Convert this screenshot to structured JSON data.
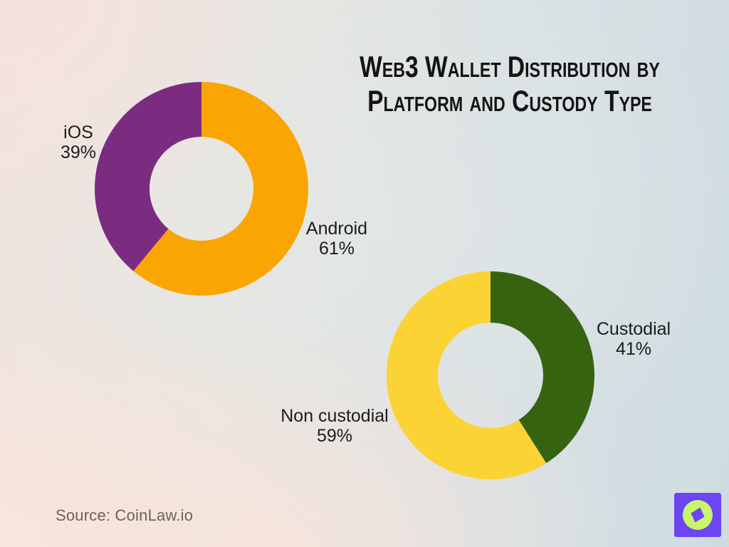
{
  "title": {
    "line1": "Web3 Wallet Distribution by",
    "line2": "Platform and Custody Type"
  },
  "source": {
    "text": "Source: CoinLaw.io"
  },
  "logo": {
    "background_color": "#6B46F2",
    "circle_color": "#C9F56B",
    "needle_color": "#6B46F2"
  },
  "colors": {
    "title_text": "#141414",
    "label_text": "#1C1C1E",
    "source_text": "#6E625D"
  },
  "chart_data": [
    {
      "type": "pie",
      "variant": "donut",
      "start_angle_deg": -90,
      "direction": "clockwise",
      "slices": [
        {
          "label": "Android",
          "value": 61,
          "pct": "61%",
          "color": "#FAA502"
        },
        {
          "label": "iOS",
          "value": 39,
          "pct": "39%",
          "color": "#7B2C80"
        }
      ]
    },
    {
      "type": "pie",
      "variant": "donut",
      "start_angle_deg": -90,
      "direction": "clockwise",
      "slices": [
        {
          "label": "Custodial",
          "value": 41,
          "pct": "41%",
          "color": "#366310"
        },
        {
          "label": "Non custodial",
          "value": 59,
          "pct": "59%",
          "color": "#FBD335"
        }
      ]
    }
  ]
}
